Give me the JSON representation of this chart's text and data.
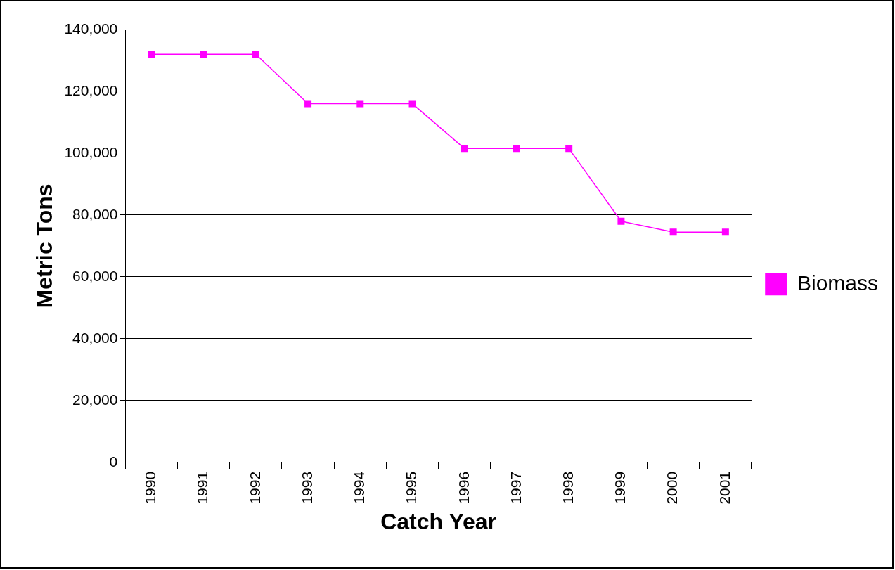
{
  "chart_data": {
    "type": "line",
    "xlabel": "Catch Year",
    "ylabel": "Metric Tons",
    "categories": [
      "1990",
      "1991",
      "1992",
      "1993",
      "1994",
      "1995",
      "1996",
      "1997",
      "1998",
      "1999",
      "2000",
      "2001"
    ],
    "series": [
      {
        "name": "Biomass",
        "color": "#ff00ff",
        "values": [
          132000,
          132000,
          132000,
          116000,
          116000,
          116000,
          101500,
          101500,
          101500,
          78000,
          74500,
          74500
        ]
      }
    ],
    "ylim": [
      0,
      140000
    ],
    "yticks": [
      {
        "value": 0,
        "label": "0"
      },
      {
        "value": 20000,
        "label": "20,000"
      },
      {
        "value": 40000,
        "label": "40,000"
      },
      {
        "value": 60000,
        "label": "60,000"
      },
      {
        "value": 80000,
        "label": "80,000"
      },
      {
        "value": 100000,
        "label": "100,000"
      },
      {
        "value": 120000,
        "label": "120,000"
      },
      {
        "value": 140000,
        "label": "140,000"
      }
    ],
    "grid": "y",
    "legend": "right",
    "marker": "square",
    "line_style": "solid"
  }
}
